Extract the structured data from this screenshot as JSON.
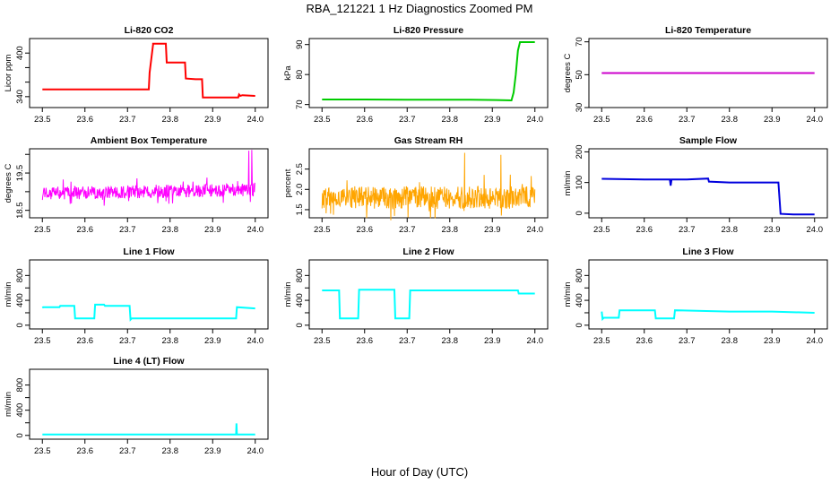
{
  "figure": {
    "title": "RBA_121221  1 Hz Diagnostics Zoomed PM",
    "xlabel": "Hour of Day (UTC)"
  },
  "chart_data": [
    {
      "type": "line",
      "title": "Li-820 CO2",
      "ylabel": "Licor ppm",
      "color": "#ff0000",
      "style": "line",
      "xlim": [
        23.47,
        24.03
      ],
      "ylim": [
        325,
        420
      ],
      "xticks": [
        23.5,
        23.6,
        23.7,
        23.8,
        23.9,
        24.0
      ],
      "xticklabels": [
        "23.5",
        "23.6",
        "23.7",
        "23.8",
        "23.9",
        "24.0"
      ],
      "yticks": [
        340,
        360,
        380,
        400
      ],
      "yticklabels": [
        "340",
        "",
        "",
        "400"
      ],
      "x": [
        23.5,
        23.75,
        23.752,
        23.76,
        23.76,
        23.79,
        23.792,
        23.8,
        23.815,
        23.835,
        23.837,
        23.86,
        23.875,
        23.877,
        23.9,
        23.96,
        23.962,
        23.965,
        23.97,
        24.0
      ],
      "y": [
        350,
        350,
        373,
        412,
        413,
        413,
        387,
        387,
        387,
        387,
        365,
        364,
        364,
        339,
        339,
        339,
        343,
        341,
        342,
        341
      ]
    },
    {
      "type": "line",
      "title": "Li-820 Pressure",
      "ylabel": "kPa",
      "color": "#00cc00",
      "style": "line",
      "xlim": [
        23.47,
        24.03
      ],
      "ylim": [
        69,
        92
      ],
      "xticks": [
        23.5,
        23.6,
        23.7,
        23.8,
        23.9,
        24.0
      ],
      "xticklabels": [
        "23.5",
        "23.6",
        "23.7",
        "23.8",
        "23.9",
        "24.0"
      ],
      "yticks": [
        70,
        80,
        90
      ],
      "yticklabels": [
        "70",
        "80",
        "90"
      ],
      "x": [
        23.5,
        23.6,
        23.7,
        23.85,
        23.91,
        23.945,
        23.95,
        23.955,
        23.96,
        23.965,
        24.0
      ],
      "y": [
        71.7,
        71.7,
        71.6,
        71.6,
        71.5,
        71.4,
        74,
        80,
        88,
        90.8,
        90.8
      ]
    },
    {
      "type": "line",
      "title": "Li-820 Temperature",
      "ylabel": "degrees C",
      "color": "#cc00cc",
      "style": "line",
      "xlim": [
        23.47,
        24.03
      ],
      "ylim": [
        30,
        72
      ],
      "xticks": [
        23.5,
        23.6,
        23.7,
        23.8,
        23.9,
        24.0
      ],
      "xticklabels": [
        "23.5",
        "23.6",
        "23.7",
        "23.8",
        "23.9",
        "24.0"
      ],
      "yticks": [
        30,
        50,
        70
      ],
      "yticklabels": [
        "30",
        "50",
        "70"
      ],
      "x": [
        23.5,
        24.0
      ],
      "y": [
        51,
        51
      ]
    },
    {
      "type": "line",
      "title": "Ambient Box Temperature",
      "ylabel": "degrees C",
      "color": "#ff00ff",
      "style": "noise",
      "xlim": [
        23.47,
        24.03
      ],
      "ylim": [
        18.3,
        20.15
      ],
      "xticks": [
        23.5,
        23.6,
        23.7,
        23.8,
        23.9,
        24.0
      ],
      "xticklabels": [
        "23.5",
        "23.6",
        "23.7",
        "23.8",
        "23.9",
        "24.0"
      ],
      "yticks": [
        18.5,
        19.0,
        19.5,
        20.0
      ],
      "yticklabels": [
        "18.5",
        "",
        "19.5",
        ""
      ],
      "x": [
        23.5,
        24.0
      ],
      "y": [
        18.95,
        19.05
      ],
      "spread": 0.35,
      "spikes": [
        [
          23.985,
          20.1
        ],
        [
          23.992,
          20.12
        ]
      ]
    },
    {
      "type": "line",
      "title": "Gas Stream RH",
      "ylabel": "percent",
      "color": "#ffa500",
      "style": "noise",
      "xlim": [
        23.47,
        24.03
      ],
      "ylim": [
        1.3,
        3.0
      ],
      "xticks": [
        23.5,
        23.6,
        23.7,
        23.8,
        23.9,
        24.0
      ],
      "xticklabels": [
        "23.5",
        "23.6",
        "23.7",
        "23.8",
        "23.9",
        "24.0"
      ],
      "yticks": [
        1.5,
        2.0,
        2.5
      ],
      "yticklabels": [
        "1.5",
        "2.0",
        "2.5"
      ],
      "x": [
        23.5,
        24.0
      ],
      "y": [
        1.8,
        1.8
      ],
      "spread": 0.55,
      "spikes": [
        [
          23.835,
          2.9
        ],
        [
          23.92,
          2.85
        ]
      ]
    },
    {
      "type": "line",
      "title": "Sample Flow",
      "ylabel": "ml/min",
      "color": "#0000dd",
      "style": "line",
      "xlim": [
        23.47,
        24.03
      ],
      "ylim": [
        -15,
        210
      ],
      "xticks": [
        23.5,
        23.6,
        23.7,
        23.8,
        23.9,
        24.0
      ],
      "xticklabels": [
        "23.5",
        "23.6",
        "23.7",
        "23.8",
        "23.9",
        "24.0"
      ],
      "yticks": [
        0,
        100,
        200
      ],
      "yticklabels": [
        "0",
        "100",
        "200"
      ],
      "x": [
        23.5,
        23.6,
        23.66,
        23.662,
        23.664,
        23.7,
        23.75,
        23.752,
        23.8,
        23.9,
        23.915,
        23.92,
        23.95,
        24.0
      ],
      "y": [
        112,
        110,
        110,
        90,
        110,
        110,
        113,
        103,
        100,
        100,
        100,
        -2,
        -4,
        -4
      ]
    },
    {
      "type": "line",
      "title": "Line 1 Flow",
      "ylabel": "ml/min",
      "color": "#00ffff",
      "style": "line",
      "xlim": [
        23.47,
        24.03
      ],
      "ylim": [
        -60,
        1050
      ],
      "xticks": [
        23.5,
        23.6,
        23.7,
        23.8,
        23.9,
        24.0
      ],
      "xticklabels": [
        "23.5",
        "23.6",
        "23.7",
        "23.8",
        "23.9",
        "24.0"
      ],
      "yticks": [
        0,
        200,
        400,
        600,
        800
      ],
      "yticklabels": [
        "0",
        "",
        "400",
        "",
        "800"
      ],
      "x": [
        23.5,
        23.502,
        23.54,
        23.542,
        23.575,
        23.577,
        23.622,
        23.624,
        23.645,
        23.647,
        23.705,
        23.707,
        23.71,
        23.955,
        23.957,
        24.0
      ],
      "y": [
        280,
        290,
        290,
        310,
        310,
        110,
        110,
        330,
        330,
        310,
        310,
        90,
        110,
        110,
        290,
        270
      ]
    },
    {
      "type": "line",
      "title": "Line 2 Flow",
      "ylabel": "ml/min",
      "color": "#00ffff",
      "style": "line",
      "xlim": [
        23.47,
        24.03
      ],
      "ylim": [
        -60,
        1050
      ],
      "xticks": [
        23.5,
        23.6,
        23.7,
        23.8,
        23.9,
        24.0
      ],
      "xticklabels": [
        "23.5",
        "23.6",
        "23.7",
        "23.8",
        "23.9",
        "24.0"
      ],
      "yticks": [
        0,
        200,
        400,
        600,
        800
      ],
      "yticklabels": [
        "0",
        "",
        "400",
        "",
        "800"
      ],
      "x": [
        23.5,
        23.54,
        23.542,
        23.585,
        23.587,
        23.67,
        23.672,
        23.705,
        23.707,
        23.8,
        23.9,
        23.96,
        23.962,
        24.0
      ],
      "y": [
        560,
        560,
        110,
        110,
        570,
        570,
        110,
        110,
        560,
        560,
        560,
        560,
        510,
        510
      ]
    },
    {
      "type": "line",
      "title": "Line 3 Flow",
      "ylabel": "ml/min",
      "color": "#00ffff",
      "style": "line",
      "xlim": [
        23.47,
        24.03
      ],
      "ylim": [
        -60,
        1050
      ],
      "xticks": [
        23.5,
        23.6,
        23.7,
        23.8,
        23.9,
        24.0
      ],
      "xticklabels": [
        "23.5",
        "23.6",
        "23.7",
        "23.8",
        "23.9",
        "24.0"
      ],
      "yticks": [
        0,
        200,
        400,
        600,
        800
      ],
      "yticklabels": [
        "0",
        "",
        "400",
        "",
        "800"
      ],
      "x": [
        23.5,
        23.502,
        23.505,
        23.54,
        23.542,
        23.625,
        23.627,
        23.67,
        23.672,
        23.8,
        23.9,
        24.0
      ],
      "y": [
        220,
        100,
        120,
        120,
        240,
        240,
        110,
        110,
        240,
        220,
        220,
        200
      ]
    },
    {
      "type": "line",
      "title": "Line 4 (LT) Flow",
      "ylabel": "ml/min",
      "color": "#00ffff",
      "style": "line",
      "xlim": [
        23.47,
        24.03
      ],
      "ylim": [
        -60,
        1050
      ],
      "xticks": [
        23.5,
        23.6,
        23.7,
        23.8,
        23.9,
        24.0
      ],
      "xticklabels": [
        "23.5",
        "23.6",
        "23.7",
        "23.8",
        "23.9",
        "24.0"
      ],
      "yticks": [
        0,
        200,
        400,
        600,
        800
      ],
      "yticklabels": [
        "0",
        "",
        "400",
        "",
        "800"
      ],
      "x": [
        23.5,
        23.955,
        23.956,
        23.957,
        23.958,
        24.0
      ],
      "y": [
        15,
        15,
        190,
        15,
        15,
        15
      ]
    }
  ]
}
